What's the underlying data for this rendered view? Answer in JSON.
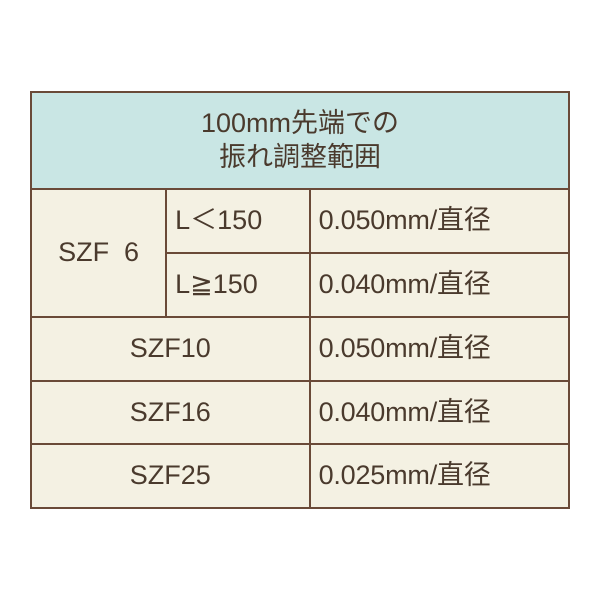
{
  "colors": {
    "header_bg": "#c9e6e4",
    "body_bg": "#f4f1e3",
    "border": "#6a4a38",
    "text": "#4a3a2d"
  },
  "header": {
    "line1": "100mm先端での",
    "line2": "振れ調整範囲"
  },
  "rows": {
    "szf6": {
      "model": "SZF  6",
      "cond1": "L＜150",
      "val1": "0.050mm/直径",
      "cond2": "L≧150",
      "val2": "0.040mm/直径"
    },
    "szf10": {
      "model": "SZF10",
      "val": "0.050mm/直径"
    },
    "szf16": {
      "model": "SZF16",
      "val": "0.040mm/直径"
    },
    "szf25": {
      "model": "SZF25",
      "val": "0.025mm/直径"
    }
  }
}
